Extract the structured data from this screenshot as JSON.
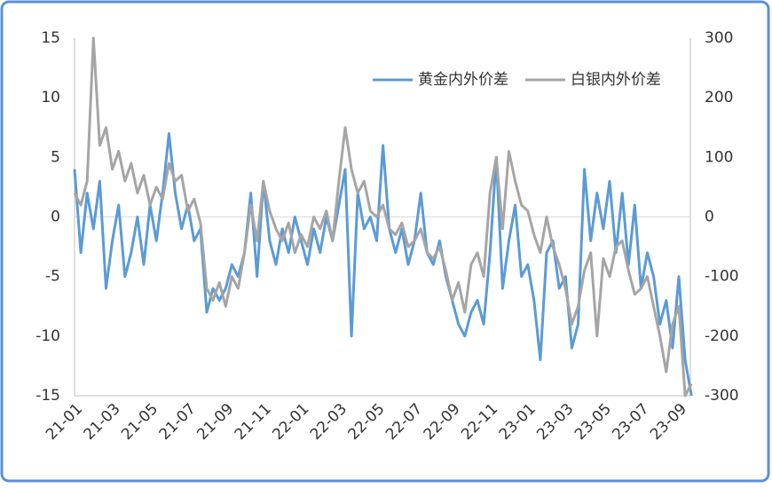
{
  "chart_data": {
    "type": "line",
    "x": [
      "21-01",
      null,
      null,
      null,
      null,
      null,
      "21-03",
      null,
      null,
      null,
      null,
      null,
      "21-05",
      null,
      null,
      null,
      null,
      null,
      "21-07",
      null,
      null,
      null,
      null,
      null,
      "21-09",
      null,
      null,
      null,
      null,
      null,
      "21-11",
      null,
      null,
      null,
      null,
      null,
      "22-01",
      null,
      null,
      null,
      null,
      null,
      "22-03",
      null,
      null,
      null,
      null,
      null,
      "22-05",
      null,
      null,
      null,
      null,
      null,
      "22-07",
      null,
      null,
      null,
      null,
      null,
      "22-09",
      null,
      null,
      null,
      null,
      null,
      "22-11",
      null,
      null,
      null,
      null,
      null,
      "23-01",
      null,
      null,
      null,
      null,
      null,
      "23-03",
      null,
      null,
      null,
      null,
      null,
      "23-05",
      null,
      null,
      null,
      null,
      null,
      "23-07",
      null,
      null,
      null,
      null,
      null,
      "23-09",
      null,
      null
    ],
    "series": [
      {
        "name": "黄金内外价差",
        "color": "#5b9bd5",
        "axis": "y",
        "values": [
          4,
          -3,
          2,
          -1,
          3,
          -6,
          -2,
          1,
          -5,
          -3,
          0,
          -4,
          1,
          -2,
          2,
          7,
          2,
          -1,
          1,
          -2,
          -1,
          -8,
          -6,
          -7,
          -6,
          -4,
          -5,
          -3,
          2,
          -5,
          3,
          -2,
          -4,
          -1,
          -3,
          0,
          -2,
          -4,
          -1,
          -3,
          0,
          -2,
          1,
          4,
          -10,
          2,
          -1,
          0,
          -2,
          6,
          -1,
          -3,
          -1,
          -4,
          -2,
          2,
          -3,
          -4,
          -2,
          -5,
          -7,
          -9,
          -10,
          -8,
          -7,
          -9,
          -3,
          5,
          -6,
          -2,
          1,
          -5,
          -4,
          -7,
          -12,
          -3,
          -2,
          -6,
          -5,
          -11,
          -9,
          4,
          -2,
          2,
          -1,
          3,
          -3,
          2,
          -4,
          1,
          -6,
          -3,
          -5,
          -9,
          -7,
          -11,
          -5,
          -12,
          -15
        ]
      },
      {
        "name": "白银内外价差",
        "color": "#a5a5a5",
        "axis": "y2",
        "values": [
          40,
          20,
          60,
          300,
          120,
          150,
          80,
          110,
          60,
          90,
          40,
          70,
          20,
          50,
          30,
          90,
          60,
          70,
          10,
          30,
          -10,
          -120,
          -140,
          -110,
          -150,
          -100,
          -120,
          -60,
          20,
          -40,
          60,
          10,
          -20,
          -40,
          -10,
          -60,
          -30,
          -50,
          0,
          -20,
          10,
          -40,
          60,
          150,
          80,
          40,
          60,
          10,
          0,
          20,
          -20,
          -30,
          -10,
          -50,
          -40,
          -20,
          -60,
          -70,
          -50,
          -90,
          -140,
          -110,
          -160,
          -80,
          -60,
          -100,
          40,
          100,
          -20,
          110,
          60,
          20,
          10,
          -30,
          -60,
          0,
          -50,
          -80,
          -120,
          -180,
          -150,
          -90,
          -60,
          -200,
          -70,
          -100,
          -50,
          -40,
          -90,
          -130,
          -120,
          -100,
          -150,
          -200,
          -260,
          -180,
          -150,
          -300,
          -280
        ]
      }
    ],
    "ylim": [
      -15,
      15
    ],
    "yticks": [
      15,
      10,
      5,
      0,
      -5,
      -10,
      -15
    ],
    "y2lim": [
      -300,
      300
    ],
    "y2ticks": [
      300,
      200,
      100,
      0,
      -100,
      -200,
      -300
    ],
    "legend": "top-right"
  }
}
